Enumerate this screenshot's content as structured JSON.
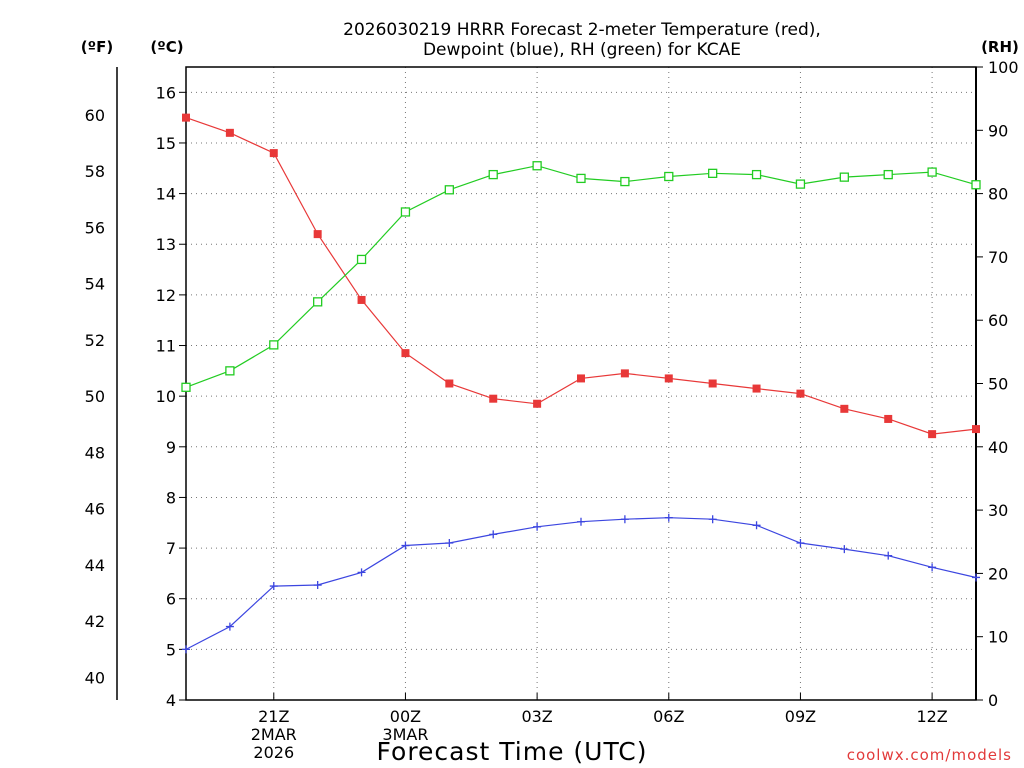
{
  "chart_data": {
    "type": "line",
    "title": "2026030219 HRRR Forecast 2-meter Temperature (red),",
    "subtitle": "Dewpoint (blue), RH (green) for KCAE",
    "xlabel": "Forecast Time (UTC)",
    "credit": "coolwx.com/models",
    "units": {
      "fahrenheit": "(ºF)",
      "celsius": "(ºC)",
      "rh": "(RH)"
    },
    "x_hours": [
      0,
      1,
      2,
      3,
      4,
      5,
      6,
      7,
      8,
      9,
      10,
      11,
      12,
      13,
      14,
      15,
      16,
      17,
      18
    ],
    "x_ticks": [
      {
        "hour": 2,
        "lines": [
          "21Z",
          "2MAR",
          "2026"
        ]
      },
      {
        "hour": 5,
        "lines": [
          "00Z",
          "3MAR"
        ]
      },
      {
        "hour": 8,
        "lines": [
          "03Z"
        ]
      },
      {
        "hour": 11,
        "lines": [
          "06Z"
        ]
      },
      {
        "hour": 14,
        "lines": [
          "09Z"
        ]
      },
      {
        "hour": 17,
        "lines": [
          "12Z"
        ]
      }
    ],
    "celsius_axis": {
      "range": [
        4,
        16.5
      ],
      "ticks": [
        4,
        5,
        6,
        7,
        8,
        9,
        10,
        11,
        12,
        13,
        14,
        15,
        16
      ]
    },
    "fahrenheit_axis": {
      "range": [
        39.2,
        61.7
      ],
      "ticks": [
        40,
        42,
        44,
        46,
        48,
        50,
        52,
        54,
        56,
        58,
        60
      ]
    },
    "rh_axis": {
      "range": [
        0,
        100
      ],
      "ticks": [
        0,
        10,
        20,
        30,
        40,
        50,
        60,
        70,
        80,
        90,
        100
      ]
    },
    "series": [
      {
        "name": "Temperature",
        "axis": "celsius",
        "color": "#e83838",
        "marker": "filled-square",
        "values": [
          15.5,
          15.2,
          14.8,
          13.2,
          11.9,
          10.85,
          10.25,
          9.95,
          9.85,
          10.35,
          10.45,
          10.35,
          10.25,
          10.15,
          10.05,
          9.75,
          9.55,
          9.25,
          9.35
        ]
      },
      {
        "name": "Dewpoint",
        "axis": "celsius",
        "color": "#3c46e0",
        "marker": "plus",
        "values": [
          5.0,
          5.45,
          6.25,
          6.27,
          6.52,
          7.05,
          7.1,
          7.27,
          7.42,
          7.52,
          7.57,
          7.6,
          7.57,
          7.45,
          7.1,
          6.98,
          6.85,
          6.62,
          6.42
        ]
      },
      {
        "name": "RH",
        "axis": "rh",
        "color": "#22cc22",
        "marker": "open-square",
        "values": [
          49.4,
          52.0,
          56.1,
          62.9,
          69.6,
          77.1,
          80.6,
          83.0,
          84.4,
          82.4,
          81.9,
          82.7,
          83.2,
          83.0,
          81.5,
          82.6,
          83.0,
          83.4,
          81.4
        ]
      }
    ]
  }
}
